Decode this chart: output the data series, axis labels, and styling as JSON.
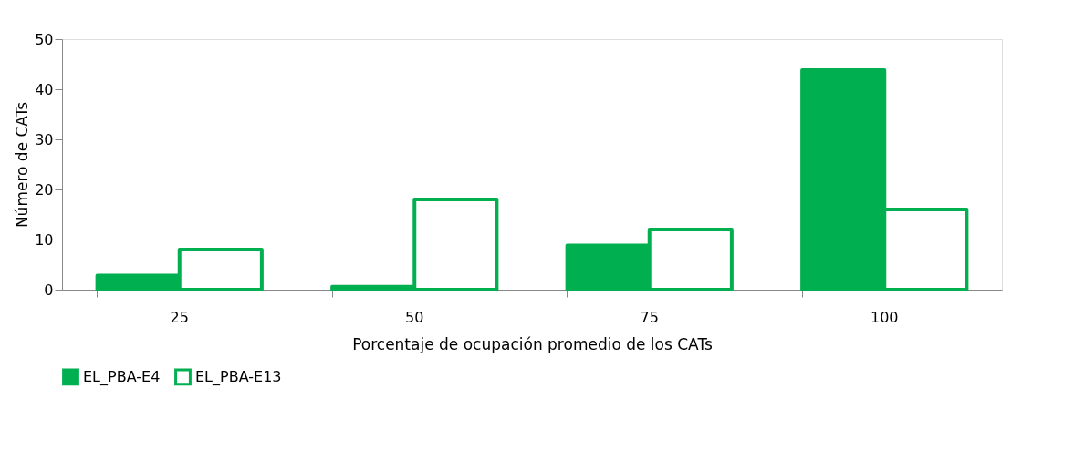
{
  "chart_data": {
    "type": "bar",
    "xlabel": "Porcentaje de ocupación promedio de los CATs",
    "ylabel": "Número de CATs",
    "categories": [
      "25",
      "50",
      "75",
      "100"
    ],
    "series": [
      {
        "name": "EL_PBA-E4",
        "color": "#00b050",
        "values": [
          2.8,
          0.6,
          8.8,
          43.8
        ]
      },
      {
        "name": "EL_PBA-E13",
        "color": "#00b050",
        "values": [
          8,
          18,
          12,
          16
        ]
      }
    ],
    "ylim": [
      0,
      50
    ],
    "yticks": [
      0,
      10,
      20,
      30,
      40,
      50
    ],
    "grid": false,
    "legend": "bottom"
  }
}
